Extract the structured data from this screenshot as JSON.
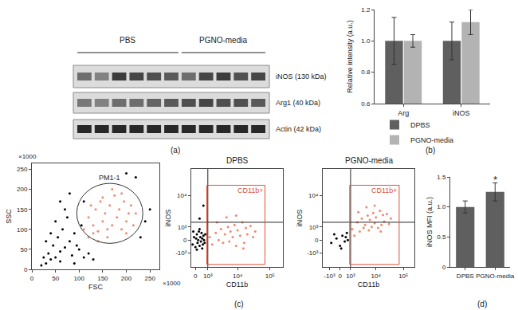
{
  "blot": {
    "caption": "(a)",
    "groups": [
      {
        "label": "PBS",
        "lanes": 6
      },
      {
        "label": "PGNO-media",
        "lanes": 5
      }
    ],
    "bands": [
      {
        "label": "iNOS (130 kDa)",
        "intensity": [
          0.6,
          0.5,
          0.85,
          0.8,
          0.75,
          0.7,
          0.6,
          0.8,
          0.85,
          0.75,
          0.8
        ]
      },
      {
        "label": "Arg1 (40 kDa)",
        "intensity": [
          0.55,
          0.5,
          0.6,
          0.6,
          0.65,
          0.7,
          0.75,
          0.8,
          0.75,
          0.75,
          0.7
        ]
      },
      {
        "label": "Actin (42 kDa)",
        "intensity": [
          0.95,
          0.95,
          0.95,
          0.95,
          0.95,
          0.95,
          0.95,
          0.95,
          0.95,
          0.95,
          0.95
        ]
      }
    ]
  },
  "chart_data": [
    {
      "type": "bar",
      "caption": "(b)",
      "y_label": "Relative intensity (a.u.)",
      "categories": [
        "Arg",
        "iNOS"
      ],
      "series": [
        {
          "name": "DPBS",
          "color": "#5f5f5f",
          "values": [
            1.0,
            1.0
          ],
          "errors": [
            0.15,
            0.12
          ]
        },
        {
          "name": "PGNO-media",
          "color": "#b3b3b3",
          "values": [
            1.0,
            1.12
          ],
          "errors": [
            0.04,
            0.08
          ]
        }
      ],
      "ylim": [
        0.6,
        1.2
      ],
      "yticks": [
        0.6,
        0.8,
        {
          "value": 1.0,
          "label": "1.0"
        },
        1.2
      ],
      "grid": false,
      "legend": "bottom"
    },
    {
      "type": "scatter",
      "caption": "(c)",
      "x_label": "FSC",
      "y_label": "SSC",
      "annotations": [
        {
          "text": "×1000",
          "axis": "y"
        },
        {
          "text": "×1000",
          "axis": "x"
        }
      ],
      "xlim": [
        0,
        270
      ],
      "xticks": [
        0,
        50,
        100,
        150,
        200,
        250
      ],
      "ylim": [
        0,
        265
      ],
      "yticks": [
        0,
        50,
        100,
        150,
        200,
        250
      ],
      "grid": false,
      "gate": {
        "label": "PM1-1",
        "shape": "ellipse",
        "x": [
          95,
          235
        ],
        "y": [
          65,
          215
        ]
      },
      "series": [
        {
          "color": "#000000",
          "x": [
            20,
            30,
            35,
            40,
            45,
            50,
            55,
            60,
            60,
            65,
            70,
            75,
            80,
            85,
            90,
            95,
            100,
            105,
            110,
            40,
            50,
            30,
            25,
            70,
            120,
            130,
            90,
            60,
            80,
            110,
            240,
            230,
            220,
            200,
            250
          ],
          "y": [
            10,
            15,
            40,
            25,
            60,
            30,
            80,
            45,
            20,
            100,
            55,
            130,
            70,
            35,
            90,
            60,
            50,
            110,
            30,
            90,
            120,
            70,
            30,
            150,
            40,
            25,
            15,
            170,
            190,
            170,
            120,
            80,
            230,
            240,
            150
          ]
        },
        {
          "color": "#f4876f",
          "x": [
            110,
            120,
            120,
            130,
            135,
            140,
            145,
            150,
            155,
            160,
            165,
            170,
            175,
            180,
            185,
            190,
            195,
            200,
            205,
            210,
            215,
            140,
            125,
            170,
            160,
            190,
            220,
            200,
            150,
            130
          ],
          "y": [
            100,
            80,
            130,
            110,
            150,
            95,
            170,
            120,
            140,
            80,
            160,
            110,
            185,
            130,
            150,
            100,
            170,
            120,
            140,
            160,
            110,
            70,
            160,
            200,
            100,
            190,
            140,
            90,
            180,
            90
          ]
        }
      ]
    },
    {
      "type": "scatter",
      "title": "DPBS",
      "x_label": "CD11b",
      "y_label": "iNOS",
      "xlim": [
        -300,
        250000
      ],
      "xticks": [
        0,
        {
          "value": 1000,
          "label": "10³"
        },
        {
          "value": 10000,
          "label": "10⁴"
        },
        {
          "value": 100000,
          "label": "10⁵"
        }
      ],
      "ylim": [
        -3000,
        60000
      ],
      "yticks": [
        {
          "value": -1000,
          "label": "-10³"
        },
        0,
        {
          "value": 1000,
          "label": "10³"
        },
        {
          "value": 10000,
          "label": "10⁴"
        }
      ],
      "grid": false,
      "quadrant": {
        "x": 1000,
        "y": 1500
      },
      "gate": {
        "label": "CD11b+",
        "shape": "rect",
        "x": [
          900,
          70000
        ],
        "y": [
          -2500,
          20000
        ]
      },
      "series": [
        {
          "color": "#000000",
          "x": [
            -200,
            -100,
            0,
            50,
            100,
            150,
            200,
            250,
            300,
            350,
            400,
            450,
            500,
            550,
            600,
            650,
            700,
            750,
            -150,
            100,
            300,
            500,
            300,
            600
          ],
          "y": [
            -300,
            200,
            -500,
            100,
            400,
            -200,
            0,
            600,
            -400,
            200,
            -100,
            500,
            100,
            -300,
            300,
            0,
            -200,
            400,
            600,
            -700,
            800,
            -600,
            2000,
            5000
          ]
        },
        {
          "color": "#f4876f",
          "x": [
            1200,
            1500,
            2000,
            2500,
            3000,
            3500,
            4000,
            5000,
            5500,
            6000,
            7000,
            8000,
            9000,
            10000,
            12000,
            14000,
            16000,
            18000,
            20000,
            25000,
            30000,
            4500,
            9000,
            2200,
            35000,
            15000
          ],
          "y": [
            200,
            -300,
            500,
            0,
            800,
            -200,
            400,
            1000,
            -100,
            600,
            200,
            1200,
            -400,
            700,
            300,
            1500,
            -200,
            900,
            400,
            1100,
            200,
            2200,
            2500,
            1500,
            600,
            -600
          ]
        }
      ]
    },
    {
      "type": "scatter",
      "title": "PGNO-media",
      "x_label": "CD11b",
      "y_label": "iNOS",
      "xlim": [
        -2000,
        250000
      ],
      "xticks": [
        {
          "value": -1000,
          "label": "-10³"
        },
        0,
        {
          "value": 1000,
          "label": "10³"
        },
        {
          "value": 10000,
          "label": "10⁴"
        },
        {
          "value": 100000,
          "label": "10⁵"
        }
      ],
      "ylim": [
        -3000,
        60000
      ],
      "yticks": [
        {
          "value": -1000,
          "label": "-10³"
        },
        0,
        {
          "value": 1000,
          "label": "10³"
        },
        {
          "value": 10000,
          "label": "10⁴"
        }
      ],
      "grid": false,
      "quadrant": {
        "x": 1000,
        "y": 1500
      },
      "gate": {
        "label": "CD11b+",
        "shape": "rect",
        "x": [
          900,
          70000
        ],
        "y": [
          -2500,
          20000
        ]
      },
      "series": [
        {
          "color": "#000000",
          "x": [
            -800,
            -300,
            0,
            200,
            400,
            600,
            700,
            -500,
            100,
            500
          ],
          "y": [
            -200,
            100,
            -400,
            300,
            -100,
            500,
            0,
            400,
            -600,
            200
          ]
        },
        {
          "color": "#f4876f",
          "x": [
            1200,
            1500,
            2000,
            2500,
            3000,
            3500,
            4000,
            5000,
            5500,
            6000,
            7000,
            8000,
            9000,
            10000,
            12000,
            14000,
            16000,
            18000,
            20000,
            25000,
            30000,
            4500,
            9000,
            2200,
            35000,
            15000
          ],
          "y": [
            800,
            300,
            1500,
            600,
            2000,
            900,
            1200,
            2500,
            700,
            1800,
            1000,
            3000,
            1400,
            2200,
            900,
            3500,
            1200,
            2600,
            1600,
            2800,
            1300,
            4500,
            5000,
            3200,
            2000,
            600
          ]
        }
      ]
    },
    {
      "type": "bar",
      "caption": "(d)",
      "y_label": "iNOS MFI (a.u.)",
      "categories": [
        "DPBS",
        "PGNO-media"
      ],
      "values": [
        1.0,
        1.25
      ],
      "errors": [
        0.1,
        0.15
      ],
      "color": "#5f5f5f",
      "ylim": [
        0,
        1.5
      ],
      "yticks": [
        0,
        0.5,
        {
          "value": 1.0,
          "label": "1.0"
        },
        1.5
      ],
      "grid": false,
      "annotations": [
        {
          "text": "*",
          "category": "PGNO-media",
          "y": 1.45
        }
      ]
    }
  ]
}
